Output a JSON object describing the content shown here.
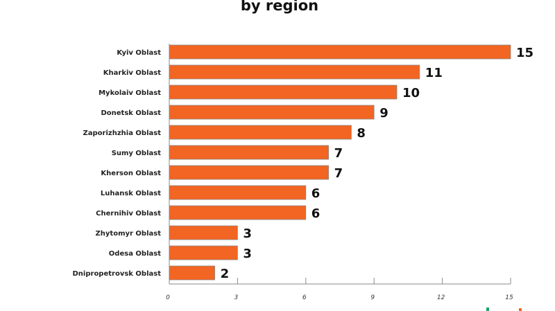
{
  "chart_data": {
    "type": "bar",
    "orientation": "horizontal",
    "title": "by region",
    "categories": [
      "Kyiv Oblast",
      "Kharkiv Oblast",
      "Mykolaiv Oblast",
      "Donetsk Oblast",
      "Zaporizhzhia Oblast",
      "Sumy Oblast",
      "Kherson Oblast",
      "Luhansk Oblast",
      "Chernihiv Oblast",
      "Zhytomyr Oblast",
      "Odesa Oblast",
      "Dnipropetrovsk Oblast"
    ],
    "values": [
      15,
      11,
      10,
      9,
      8,
      7,
      7,
      6,
      6,
      3,
      3,
      2
    ],
    "xlim": [
      0,
      15
    ],
    "xticks": [
      0,
      3,
      6,
      9,
      12,
      15
    ],
    "grid": false,
    "bar_color": "#f26522",
    "legend_marker_colors": [
      "#1aa36b",
      "#f26522"
    ],
    "legend": "bottom-right"
  }
}
